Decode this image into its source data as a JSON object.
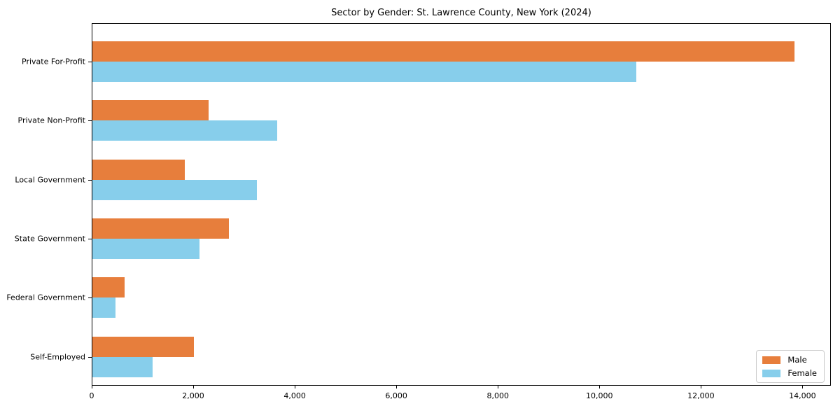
{
  "figure": {
    "background": "#ffffff",
    "title": "Sector by Gender: St. Lawrence County, New York (2024)"
  },
  "chart_data": {
    "type": "bar",
    "orientation": "horizontal",
    "title": "Sector by Gender: St. Lawrence County, New York (2024)",
    "categories": [
      "Private For-Profit",
      "Private Non-Profit",
      "Local Government",
      "State Government",
      "Federal Government",
      "Self-Employed"
    ],
    "series": [
      {
        "name": "Male",
        "color": "#e77e3c",
        "values": [
          13850,
          2300,
          1820,
          2690,
          630,
          2000
        ]
      },
      {
        "name": "Female",
        "color": "#87ceeb",
        "values": [
          10740,
          3650,
          3240,
          2110,
          460,
          1190
        ]
      }
    ],
    "xlabel": "",
    "ylabel": "",
    "xlim": [
      0,
      14560
    ],
    "xticks": [
      0,
      2000,
      4000,
      6000,
      8000,
      10000,
      12000,
      14000
    ],
    "xtick_labels": [
      "0",
      "2,000",
      "4,000",
      "6,000",
      "8,000",
      "10,000",
      "12,000",
      "14,000"
    ],
    "grid": false,
    "legend": {
      "position": "lower right"
    }
  }
}
